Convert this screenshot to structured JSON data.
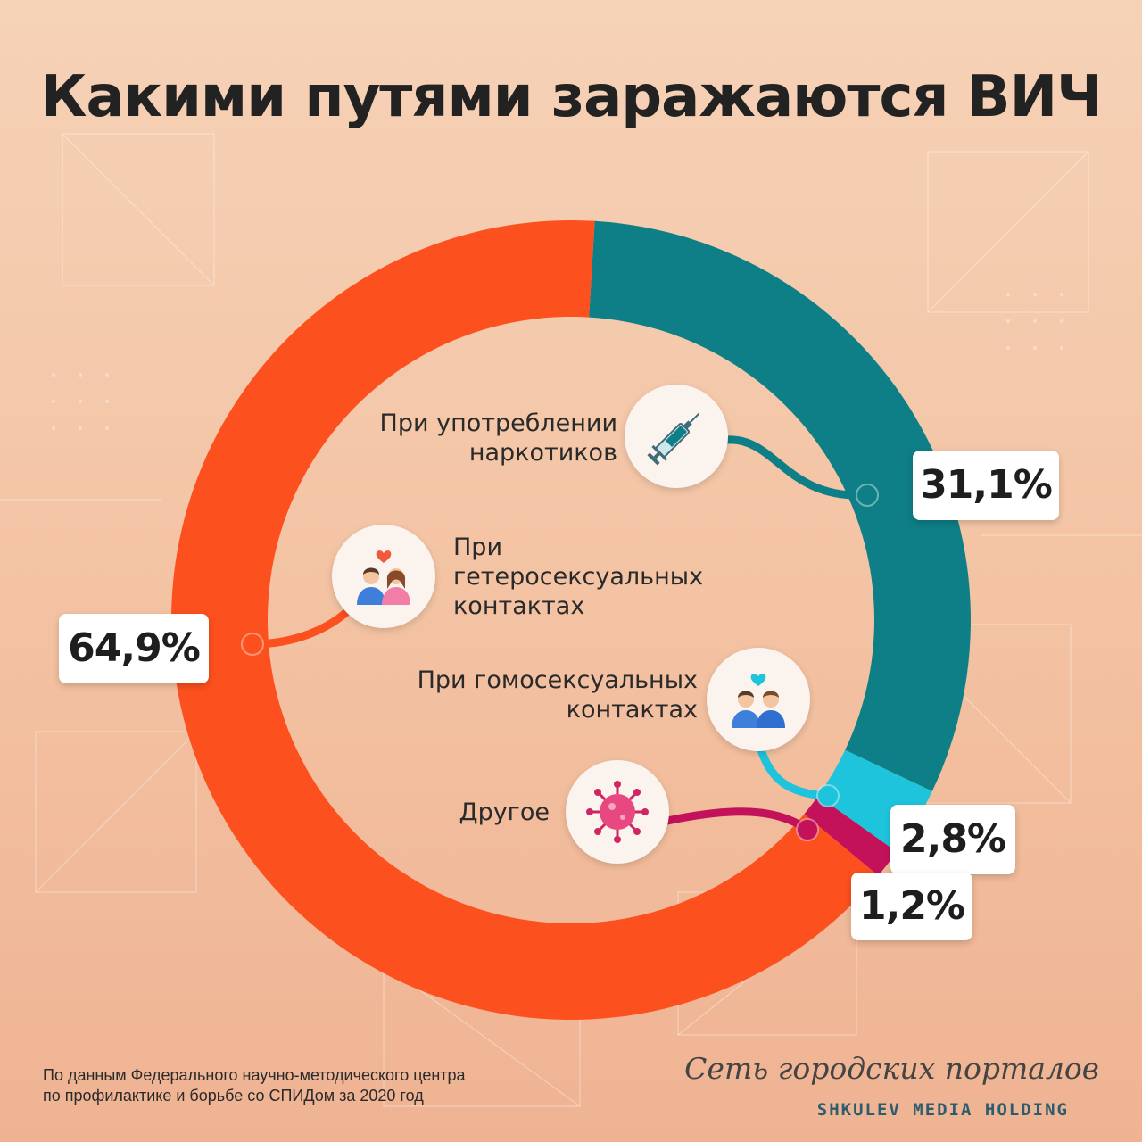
{
  "title": "Какими путями заражаются ВИЧ",
  "chart_data": {
    "type": "pie",
    "donut": true,
    "title": "Какими путями заражаются ВИЧ",
    "unit": "%",
    "start_angle_deg": 3.4,
    "categories": [
      "При употреблении наркотиков",
      "При гомосексуальных контактах",
      "Другое",
      "При гетеросексуальных контактах"
    ],
    "values": [
      31.1,
      2.8,
      1.2,
      64.9
    ],
    "value_labels": [
      "31,1%",
      "2,8%",
      "1,2%",
      "64,9%"
    ],
    "colors": [
      "#0e7f86",
      "#1ec4dc",
      "#c3125a",
      "#fc501e"
    ],
    "labels": {
      "drugs": [
        "При употреблении",
        "наркотиков"
      ],
      "homo": [
        "При гомосексуальных",
        "контактах"
      ],
      "other": [
        "Другое"
      ],
      "hetero": [
        "При",
        "гетеросексуальных",
        "контактах"
      ]
    },
    "icons": {
      "drugs": "syringe-icon",
      "hetero": "heterosexual-couple-icon",
      "homo": "homosexual-couple-icon",
      "other": "virus-icon"
    }
  },
  "source": [
    "По данным Федерального научно-методического центра",
    "по профилактике и борьбе со СПИДом за 2020 год"
  ],
  "brand": {
    "script": "Сеть городских порталов",
    "holding": "SHKULEV MEDIA HOLDING"
  }
}
